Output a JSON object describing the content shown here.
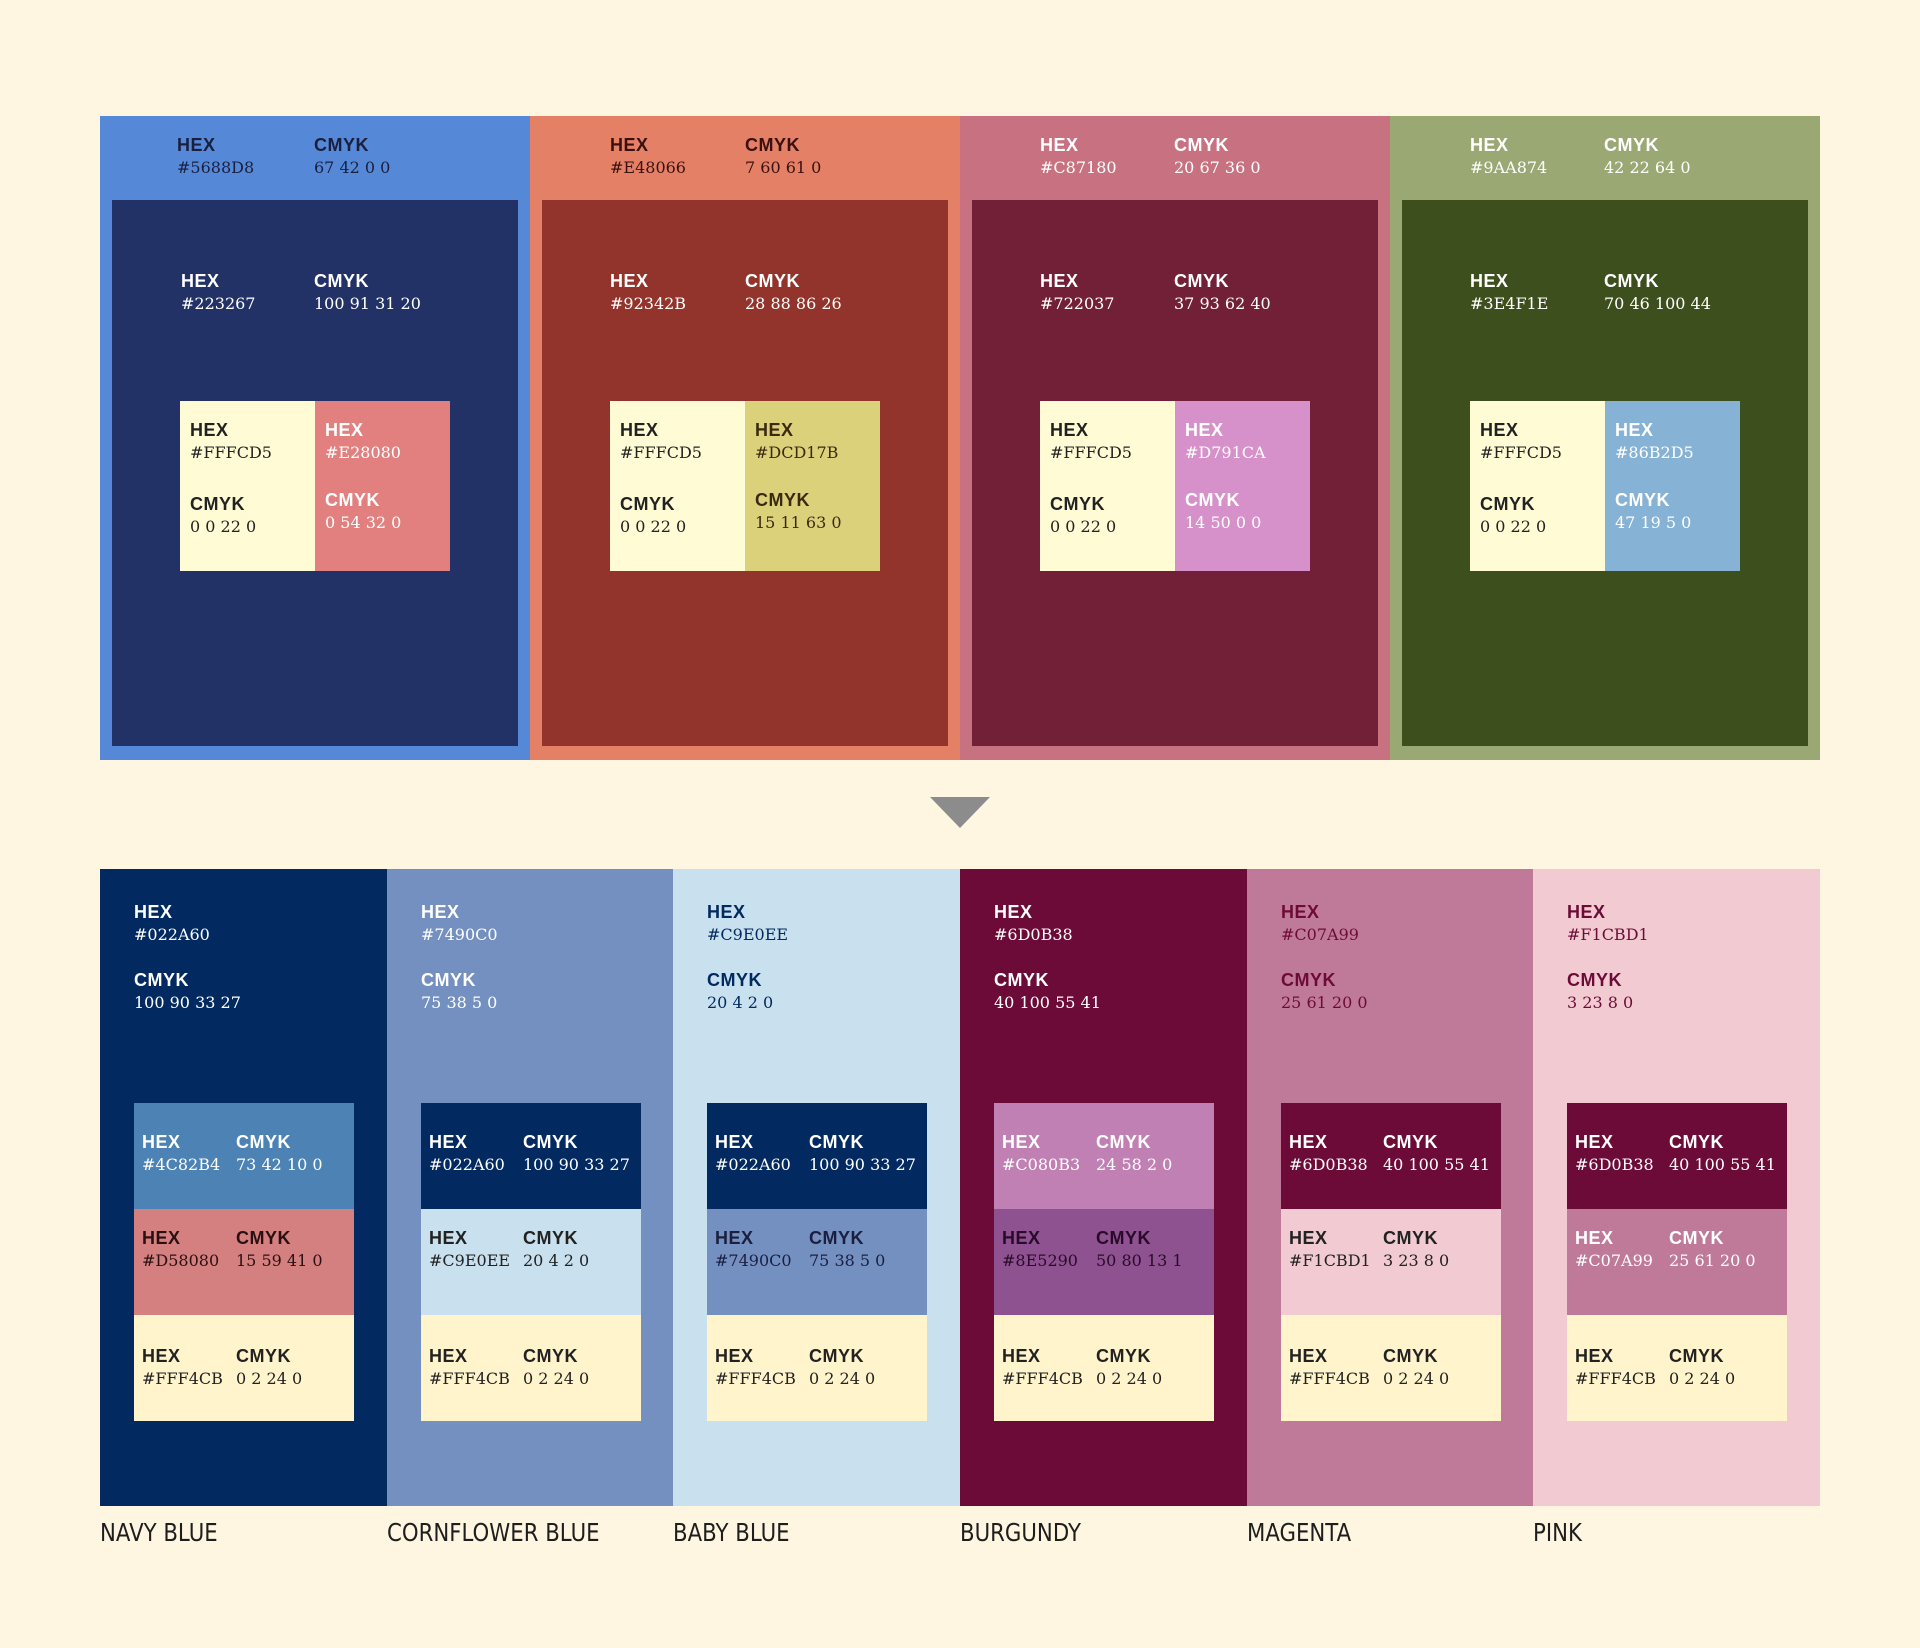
{
  "top": [
    {
      "outer": {
        "hex_label": "HEX",
        "hex": "#5688D8",
        "cmyk_label": "CMYK",
        "cmyk": "67 42 0 0",
        "bg": "#5688D8",
        "text": "#1a1f3f"
      },
      "inner": {
        "hex_label": "HEX",
        "hex": "#223267",
        "cmyk_label": "CMYK",
        "cmyk": "100 91 31 20",
        "bg": "#223267",
        "text": "#FFFFFF"
      },
      "swatch": [
        {
          "hex_label": "HEX",
          "hex": "#FFFCD5",
          "cmyk_label": "CMYK",
          "cmyk": "0 0 22 0",
          "bg": "#FFFCD5",
          "text": "#222222"
        },
        {
          "hex_label": "HEX",
          "hex": "#E28080",
          "cmyk_label": "CMYK",
          "cmyk": "0 54 32 0",
          "bg": "#E28080",
          "text": "#FFFFFF"
        }
      ]
    },
    {
      "outer": {
        "hex_label": "HEX",
        "hex": "#E48066",
        "cmyk_label": "CMYK",
        "cmyk": "7 60 61 0",
        "bg": "#E48066",
        "text": "#3a1010"
      },
      "inner": {
        "hex_label": "HEX",
        "hex": "#92342B",
        "cmyk_label": "CMYK",
        "cmyk": "28 88 86 26",
        "bg": "#92342B",
        "text": "#FFFFFF"
      },
      "swatch": [
        {
          "hex_label": "HEX",
          "hex": "#FFFCD5",
          "cmyk_label": "CMYK",
          "cmyk": "0 0 22 0",
          "bg": "#FFFCD5",
          "text": "#222222"
        },
        {
          "hex_label": "HEX",
          "hex": "#DCD17B",
          "cmyk_label": "CMYK",
          "cmyk": "15 11 63 0",
          "bg": "#DCD17B",
          "text": "#3a2a10"
        }
      ]
    },
    {
      "outer": {
        "hex_label": "HEX",
        "hex": "#C87180",
        "cmyk_label": "CMYK",
        "cmyk": "20 67 36 0",
        "bg": "#C87180",
        "text": "#FFFFFF"
      },
      "inner": {
        "hex_label": "HEX",
        "hex": "#722037",
        "cmyk_label": "CMYK",
        "cmyk": "37 93 62 40",
        "bg": "#722037",
        "text": "#FFFFFF"
      },
      "swatch": [
        {
          "hex_label": "HEX",
          "hex": "#FFFCD5",
          "cmyk_label": "CMYK",
          "cmyk": "0 0 22 0",
          "bg": "#FFFCD5",
          "text": "#222222"
        },
        {
          "hex_label": "HEX",
          "hex": "#D791CA",
          "cmyk_label": "CMYK",
          "cmyk": "14 50 0 0",
          "bg": "#D791CA",
          "text": "#FFFFFF"
        }
      ]
    },
    {
      "outer": {
        "hex_label": "HEX",
        "hex": "#9AA874",
        "cmyk_label": "CMYK",
        "cmyk": "42 22 64 0",
        "bg": "#9AA874",
        "text": "#FFFFFF"
      },
      "inner": {
        "hex_label": "HEX",
        "hex": "#3E4F1E",
        "cmyk_label": "CMYK",
        "cmyk": "70 46 100 44",
        "bg": "#3E4F1E",
        "text": "#FFFFFF"
      },
      "swatch": [
        {
          "hex_label": "HEX",
          "hex": "#FFFCD5",
          "cmyk_label": "CMYK",
          "cmyk": "0 0 22 0",
          "bg": "#FFFCD5",
          "text": "#222222"
        },
        {
          "hex_label": "HEX",
          "hex": "#86B2D5",
          "cmyk_label": "CMYK",
          "cmyk": "47 19 5 0",
          "bg": "#86B2D5",
          "text": "#FFFFFF"
        }
      ]
    }
  ],
  "bottom": [
    {
      "name": "NAVY BLUE",
      "main": {
        "hex_label": "HEX",
        "hex": "#022A60",
        "cmyk_label": "CMYK",
        "cmyk": "100 90 33 27",
        "bg": "#022A60",
        "text": "#FFFFFF"
      },
      "stack": [
        {
          "hex_label": "HEX",
          "hex": "#4C82B4",
          "cmyk_label": "CMYK",
          "cmyk": "73 42 10 0",
          "bg": "#4C82B4",
          "text": "#FFFFFF"
        },
        {
          "hex_label": "HEX",
          "hex": "#D58080",
          "cmyk_label": "CMYK",
          "cmyk": "15 59 41 0",
          "bg": "#D58080",
          "text": "#2a1010"
        },
        {
          "hex_label": "HEX",
          "hex": "#FFF4CB",
          "cmyk_label": "CMYK",
          "cmyk": "0 2 24 0",
          "bg": "#FFF4CB",
          "text": "#222222"
        }
      ]
    },
    {
      "name": "CORNFLOWER BLUE",
      "main": {
        "hex_label": "HEX",
        "hex": "#7490C0",
        "cmyk_label": "CMYK",
        "cmyk": "75 38 5 0",
        "bg": "#7490C0",
        "text": "#FFFFFF"
      },
      "stack": [
        {
          "hex_label": "HEX",
          "hex": "#022A60",
          "cmyk_label": "CMYK",
          "cmyk": "100 90 33 27",
          "bg": "#022A60",
          "text": "#FFFFFF"
        },
        {
          "hex_label": "HEX",
          "hex": "#C9E0EE",
          "cmyk_label": "CMYK",
          "cmyk": "20 4 2 0",
          "bg": "#C9E0EE",
          "text": "#222222"
        },
        {
          "hex_label": "HEX",
          "hex": "#FFF4CB",
          "cmyk_label": "CMYK",
          "cmyk": "0 2 24 0",
          "bg": "#FFF4CB",
          "text": "#222222"
        }
      ]
    },
    {
      "name": "BABY BLUE",
      "main": {
        "hex_label": "HEX",
        "hex": "#C9E0EE",
        "cmyk_label": "CMYK",
        "cmyk": "20 4 2 0",
        "bg": "#C9E0EE",
        "text": "#022A60"
      },
      "stack": [
        {
          "hex_label": "HEX",
          "hex": "#022A60",
          "cmyk_label": "CMYK",
          "cmyk": "100 90 33 27",
          "bg": "#022A60",
          "text": "#FFFFFF"
        },
        {
          "hex_label": "HEX",
          "hex": "#7490C0",
          "cmyk_label": "CMYK",
          "cmyk": "75 38 5 0",
          "bg": "#7490C0",
          "text": "#1a1f3f"
        },
        {
          "hex_label": "HEX",
          "hex": "#FFF4CB",
          "cmyk_label": "CMYK",
          "cmyk": "0 2 24 0",
          "bg": "#FFF4CB",
          "text": "#222222"
        }
      ]
    },
    {
      "name": "BURGUNDY",
      "main": {
        "hex_label": "HEX",
        "hex": "#6D0B38",
        "cmyk_label": "CMYK",
        "cmyk": "40 100 55 41",
        "bg": "#6D0B38",
        "text": "#FFFFFF"
      },
      "stack": [
        {
          "hex_label": "HEX",
          "hex": "#C080B3",
          "cmyk_label": "CMYK",
          "cmyk": "24 58 2 0",
          "bg": "#C080B3",
          "text": "#FFFFFF"
        },
        {
          "hex_label": "HEX",
          "hex": "#8E5290",
          "cmyk_label": "CMYK",
          "cmyk": "50 80 13 1",
          "bg": "#8E5290",
          "text": "#2a0a2a"
        },
        {
          "hex_label": "HEX",
          "hex": "#FFF4CB",
          "cmyk_label": "CMYK",
          "cmyk": "0 2 24 0",
          "bg": "#FFF4CB",
          "text": "#222222"
        }
      ]
    },
    {
      "name": "MAGENTA",
      "main": {
        "hex_label": "HEX",
        "hex": "#C07A99",
        "cmyk_label": "CMYK",
        "cmyk": "25 61 20 0",
        "bg": "#C07A99",
        "text": "#6D0B38"
      },
      "stack": [
        {
          "hex_label": "HEX",
          "hex": "#6D0B38",
          "cmyk_label": "CMYK",
          "cmyk": "40 100 55 41",
          "bg": "#6D0B38",
          "text": "#FFFFFF"
        },
        {
          "hex_label": "HEX",
          "hex": "#F1CBD1",
          "cmyk_label": "CMYK",
          "cmyk": "3 23 8 0",
          "bg": "#F1CBD1",
          "text": "#222222"
        },
        {
          "hex_label": "HEX",
          "hex": "#FFF4CB",
          "cmyk_label": "CMYK",
          "cmyk": "0 2 24 0",
          "bg": "#FFF4CB",
          "text": "#222222"
        }
      ]
    },
    {
      "name": "PINK",
      "main": {
        "hex_label": "HEX",
        "hex": "#F1CBD1",
        "cmyk_label": "CMYK",
        "cmyk": "3 23 8 0",
        "bg": "#F1CBD1",
        "text": "#6D0B38"
      },
      "stack": [
        {
          "hex_label": "HEX",
          "hex": "#6D0B38",
          "cmyk_label": "CMYK",
          "cmyk": "40 100 55 41",
          "bg": "#6D0B38",
          "text": "#FFFFFF"
        },
        {
          "hex_label": "HEX",
          "hex": "#C07A99",
          "cmyk_label": "CMYK",
          "cmyk": "25 61 20 0",
          "bg": "#C07A99",
          "text": "#FFFFFF"
        },
        {
          "hex_label": "HEX",
          "hex": "#FFF4CB",
          "cmyk_label": "CMYK",
          "cmyk": "0 2 24 0",
          "bg": "#FFF4CB",
          "text": "#222222"
        }
      ]
    }
  ],
  "arrow_color": "#8C8C8C",
  "background": "#FFF6E1"
}
